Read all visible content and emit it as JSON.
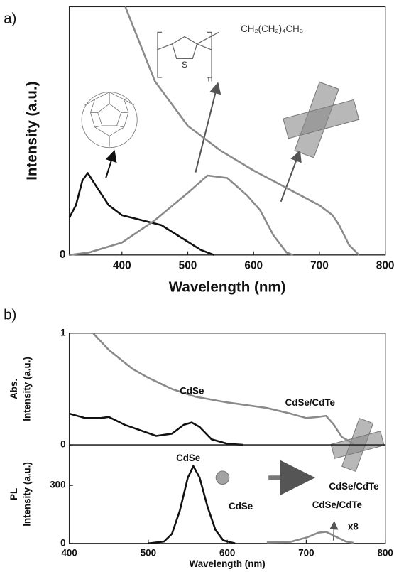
{
  "chart_data": [
    {
      "type": "line",
      "panel_label": "a)",
      "xlabel": "Wavelength (nm)",
      "ylabel": "Intensity (a.u.)",
      "xlim": [
        320,
        800
      ],
      "xticks": [
        400,
        500,
        600,
        700,
        800
      ],
      "ylim": [
        0,
        1
      ],
      "yticks": [
        0
      ],
      "series": [
        {
          "color": "#111111",
          "x": [
            320,
            330,
            340,
            348,
            360,
            380,
            400,
            430,
            460,
            490,
            520,
            540
          ],
          "values": [
            0.15,
            0.2,
            0.3,
            0.33,
            0.28,
            0.2,
            0.16,
            0.14,
            0.12,
            0.07,
            0.02,
            0
          ]
        },
        {
          "color": "#8a8a8a",
          "x": [
            320,
            350,
            400,
            450,
            500,
            530,
            560,
            590,
            610,
            630,
            650,
            660
          ],
          "values": [
            0,
            0.01,
            0.05,
            0.14,
            0.25,
            0.32,
            0.31,
            0.24,
            0.18,
            0.08,
            0.01,
            0
          ]
        },
        {
          "color": "#8a8a8a",
          "x": [
            405,
            450,
            500,
            550,
            600,
            650,
            700,
            720,
            730,
            745,
            760
          ],
          "values": [
            1.0,
            0.7,
            0.52,
            0.42,
            0.34,
            0.27,
            0.2,
            0.16,
            0.12,
            0.04,
            0
          ]
        }
      ],
      "annotations": [
        {
          "text": "CH₂(CH₂)₄CH₃"
        },
        {
          "text": "S"
        },
        {
          "text": "n"
        }
      ]
    },
    {
      "type": "line",
      "panel_label": "b)",
      "ylabel": [
        "Abs.",
        "Intensity (a.u.)"
      ],
      "xlim": [
        400,
        800
      ],
      "ylim": [
        0,
        1
      ],
      "yticks": [
        0,
        1
      ],
      "series": [
        {
          "color": "#111111",
          "x": [
            400,
            420,
            440,
            450,
            470,
            490,
            510,
            530,
            545,
            555,
            565,
            580,
            600,
            620
          ],
          "values": [
            0.28,
            0.24,
            0.24,
            0.25,
            0.18,
            0.13,
            0.08,
            0.1,
            0.18,
            0.2,
            0.16,
            0.05,
            0.01,
            0
          ]
        },
        {
          "color": "#8a8a8a",
          "x": [
            430,
            450,
            480,
            500,
            530,
            560,
            600,
            650,
            680,
            700,
            715,
            725,
            735,
            745,
            760
          ],
          "values": [
            1.0,
            0.85,
            0.68,
            0.6,
            0.5,
            0.43,
            0.38,
            0.33,
            0.28,
            0.24,
            0.25,
            0.26,
            0.18,
            0.07,
            0.01
          ]
        }
      ],
      "annotations": [
        {
          "text": "CdSe"
        },
        {
          "text": "CdSe/CdTe"
        }
      ]
    },
    {
      "type": "line",
      "xlabel": "Wavelength (nm)",
      "ylabel": [
        "PL",
        "Intensity (a.u.)"
      ],
      "xlim": [
        400,
        800
      ],
      "xticks": [
        400,
        500,
        600,
        700,
        800
      ],
      "ylim": [
        0,
        510
      ],
      "yticks": [
        0,
        300
      ],
      "series": [
        {
          "color": "#111111",
          "x": [
            500,
            520,
            530,
            540,
            550,
            557,
            565,
            575,
            585,
            595,
            610
          ],
          "values": [
            0,
            10,
            50,
            170,
            340,
            400,
            340,
            190,
            70,
            15,
            0
          ]
        },
        {
          "color": "#8a8a8a",
          "x": [
            650,
            680,
            700,
            715,
            725,
            735,
            750,
            760
          ],
          "values": [
            5,
            8,
            30,
            55,
            60,
            40,
            10,
            3
          ]
        }
      ],
      "annotations": [
        {
          "text": "CdSe"
        },
        {
          "text": "CdSe"
        },
        {
          "text": "CdSe/CdTe"
        },
        {
          "text": "CdSe/CdTe"
        },
        {
          "text": "x8"
        }
      ]
    }
  ]
}
